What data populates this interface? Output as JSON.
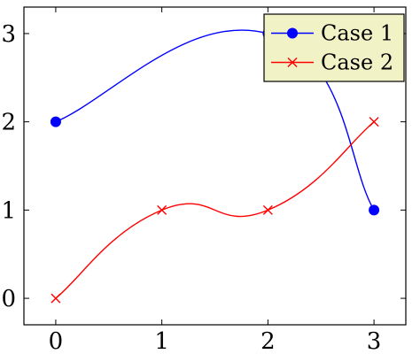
{
  "chart_data": {
    "type": "line",
    "title": "",
    "xlabel": "",
    "ylabel": "",
    "xlim": [
      -0.3,
      3.3
    ],
    "ylim": [
      -0.3,
      3.3
    ],
    "xticks": [
      0,
      1,
      2,
      3
    ],
    "yticks": [
      0,
      1,
      2,
      3
    ],
    "xtick_labels": [
      "0",
      "1",
      "2",
      "3"
    ],
    "ytick_labels": [
      "0",
      "1",
      "2",
      "3"
    ],
    "grid": false,
    "legend_position": "top-right",
    "series": [
      {
        "name": "Case 1",
        "marker": "circle",
        "color": "#0000ff",
        "smooth": true,
        "points": [
          [
            0,
            2
          ],
          [
            2,
            3
          ],
          [
            3,
            1
          ]
        ]
      },
      {
        "name": "Case 2",
        "marker": "x",
        "color": "#ff0000",
        "smooth": true,
        "points": [
          [
            0,
            0
          ],
          [
            1,
            1
          ],
          [
            2,
            1
          ],
          [
            3,
            2
          ]
        ]
      }
    ],
    "legend_background": "#f2f2c7"
  }
}
